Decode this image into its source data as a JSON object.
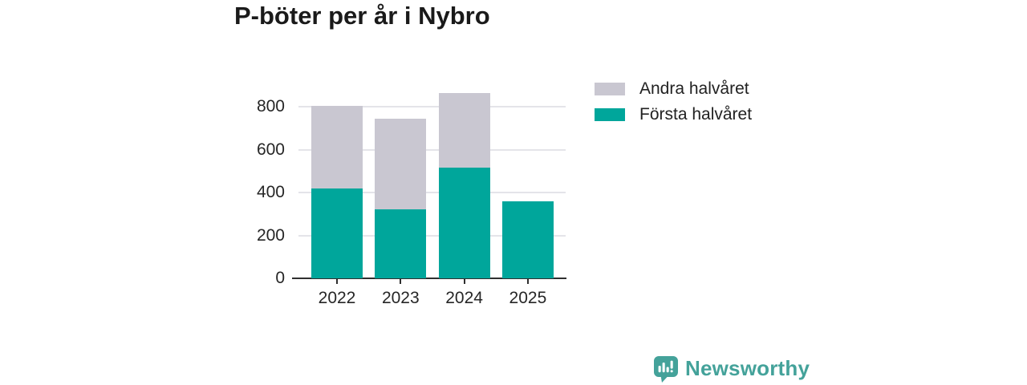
{
  "title": "P-böter per år i Nybro",
  "legend": {
    "items": [
      {
        "label": "Andra halvåret",
        "color": "#c9c7d1"
      },
      {
        "label": "Första halvåret",
        "color": "#00a69b"
      }
    ]
  },
  "chart_data": {
    "type": "bar",
    "stacked": true,
    "title": "P-böter per år i Nybro",
    "categories": [
      "2022",
      "2023",
      "2024",
      "2025"
    ],
    "series": [
      {
        "name": "Första halvåret",
        "color": "#00a69b",
        "values": [
          420,
          320,
          515,
          360
        ]
      },
      {
        "name": "Andra halvåret",
        "color": "#c9c7d1",
        "values": [
          385,
          425,
          350,
          0
        ]
      }
    ],
    "totals": [
      805,
      745,
      865,
      360
    ],
    "yticks": [
      0,
      200,
      400,
      600,
      800
    ],
    "ylim": [
      0,
      905
    ],
    "xlabel": "",
    "ylabel": "",
    "grid": true,
    "legend_position": "right-top"
  },
  "footer": {
    "brand": "Newsworthy",
    "brand_color": "#44a29a",
    "logo_icon": "newsworthy-bar-chart-bubble-icon"
  },
  "colors": {
    "first_half": "#00a69b",
    "second_half": "#c9c7d1",
    "gridline": "#e4e4e9",
    "axis": "#2f2f2f",
    "text": "#262626",
    "title": "#1a1a1a",
    "brand": "#44a29a",
    "background": "#ffffff"
  }
}
